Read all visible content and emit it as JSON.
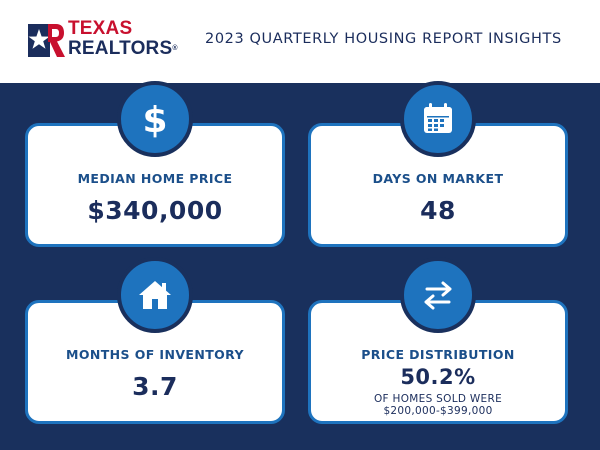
{
  "brand": {
    "line1": "TEXAS",
    "line2": "REALTORS",
    "reg_mark": "®"
  },
  "header": {
    "title": "2023 QUARTERLY HOUSING REPORT INSIGHTS"
  },
  "colors": {
    "navy": "#19305d",
    "blue": "#1e73be",
    "red": "#c8102e"
  },
  "cards": [
    {
      "icon": "dollar-sign-icon",
      "label": "MEDIAN HOME PRICE",
      "value": "$340,000"
    },
    {
      "icon": "calendar-icon",
      "label": "DAYS ON MARKET",
      "value": "48"
    },
    {
      "icon": "house-icon",
      "label": "MONTHS OF INVENTORY",
      "value": "3.7"
    },
    {
      "icon": "swap-arrows-icon",
      "label": "PRICE DISTRIBUTION",
      "value": "50.2%",
      "note_line1": "OF HOMES SOLD WERE",
      "note_line2": "$200,000-$399,000"
    }
  ]
}
